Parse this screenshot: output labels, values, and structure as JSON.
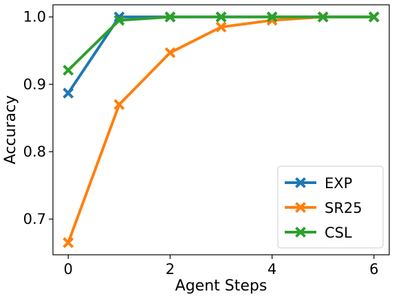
{
  "chart_data": {
    "type": "line",
    "xlabel": "Agent Steps",
    "ylabel": "Accuracy",
    "xlim": [
      -0.3,
      6.3
    ],
    "ylim": [
      0.647,
      1.018
    ],
    "xticks": [
      0,
      2,
      4,
      6
    ],
    "yticks": [
      0.7,
      0.8,
      0.9,
      1.0
    ],
    "xtick_labels": [
      "0",
      "2",
      "4",
      "6"
    ],
    "ytick_labels": [
      "0.7",
      "0.8",
      "0.9",
      "1.0"
    ],
    "grid": false,
    "legend_position": "lower-right",
    "marker": "x",
    "series": [
      {
        "name": "EXP",
        "color": "#1f77b4",
        "x": [
          0,
          1,
          2,
          3,
          4,
          5,
          6
        ],
        "y": [
          0.887,
          1.0,
          1.0,
          1.0,
          1.0,
          1.0,
          1.0
        ]
      },
      {
        "name": "SR25",
        "color": "#ff7f0e",
        "x": [
          0,
          1,
          2,
          3,
          4,
          5,
          6
        ],
        "y": [
          0.665,
          0.87,
          0.947,
          0.985,
          0.995,
          1.0,
          1.0
        ]
      },
      {
        "name": "CSL",
        "color": "#2ca02c",
        "x": [
          0,
          1,
          2,
          3,
          4,
          5,
          6
        ],
        "y": [
          0.921,
          0.995,
          1.0,
          1.0,
          1.0,
          1.0,
          1.0
        ]
      }
    ]
  }
}
